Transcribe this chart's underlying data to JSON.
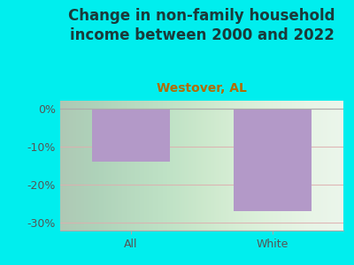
{
  "title": "Change in non-family household\nincome between 2000 and 2022",
  "subtitle": "Westover, AL",
  "categories": [
    "All",
    "White"
  ],
  "values": [
    -14.0,
    -27.0
  ],
  "bar_color": "#b399c8",
  "title_color": "#1a3a3a",
  "subtitle_color": "#b36b00",
  "background_color": "#00eeee",
  "plot_bg_color_bottom": "#d8eed8",
  "plot_bg_color_top": "#f0f8f0",
  "ylim": [
    -32,
    2
  ],
  "yticks": [
    0,
    -10,
    -20,
    -30
  ],
  "ytick_labels": [
    "0%",
    "-10%",
    "-20%",
    "-30%"
  ],
  "grid_color": "#ddb0b0",
  "title_fontsize": 12,
  "subtitle_fontsize": 10,
  "tick_fontsize": 9,
  "bar_width": 0.55,
  "bar_values": [
    -14.0,
    -27.0
  ]
}
